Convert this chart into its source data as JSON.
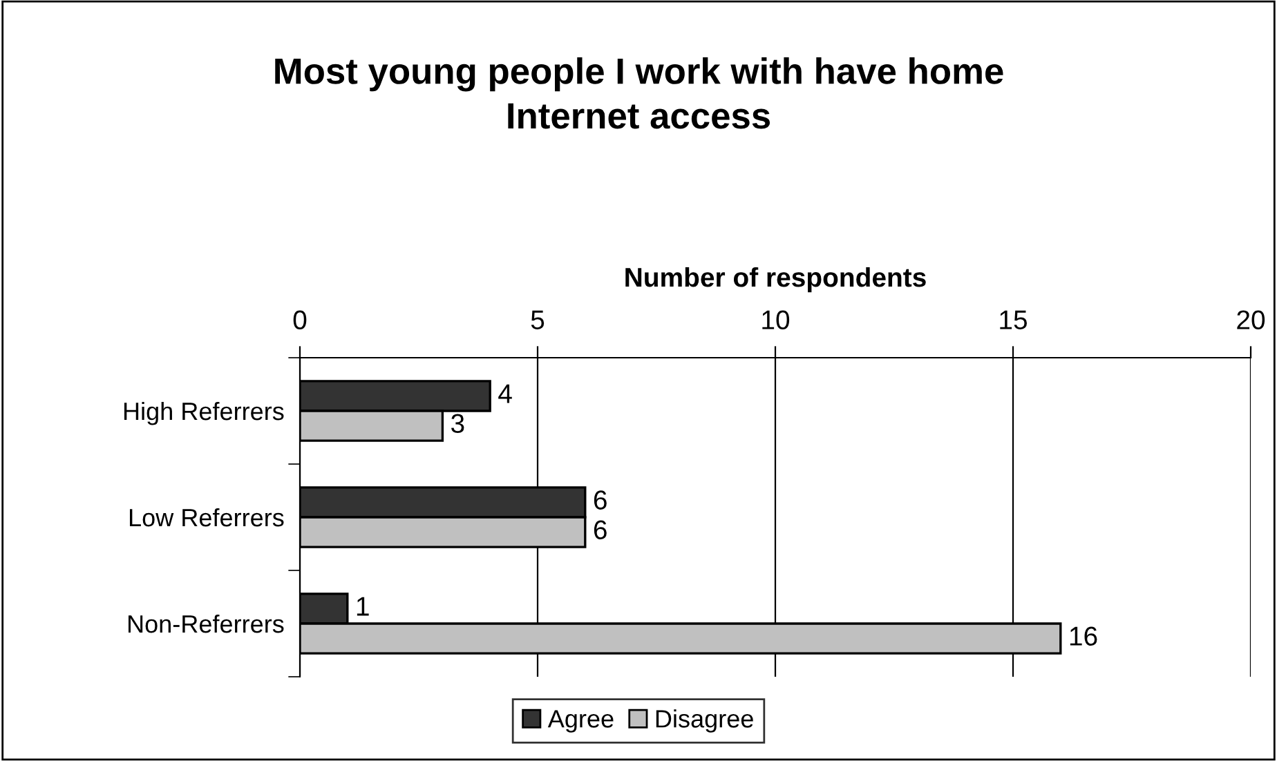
{
  "chart_data": {
    "type": "bar",
    "orientation": "horizontal",
    "title": "Most young people I work with have home\nInternet access",
    "xlabel": "Number of respondents",
    "categories": [
      "High Referrers",
      "Low Referrers",
      "Non-Referrers"
    ],
    "series": [
      {
        "name": "Agree",
        "color": "#333333",
        "values": [
          4,
          6,
          1
        ]
      },
      {
        "name": "Disagree",
        "color": "#c0c0c0",
        "values": [
          3,
          6,
          16
        ]
      }
    ],
    "xlim": [
      0,
      20
    ],
    "xticks": [
      0,
      5,
      10,
      15,
      20
    ],
    "grid": "x",
    "legend": "bottom",
    "data_labels": true
  }
}
